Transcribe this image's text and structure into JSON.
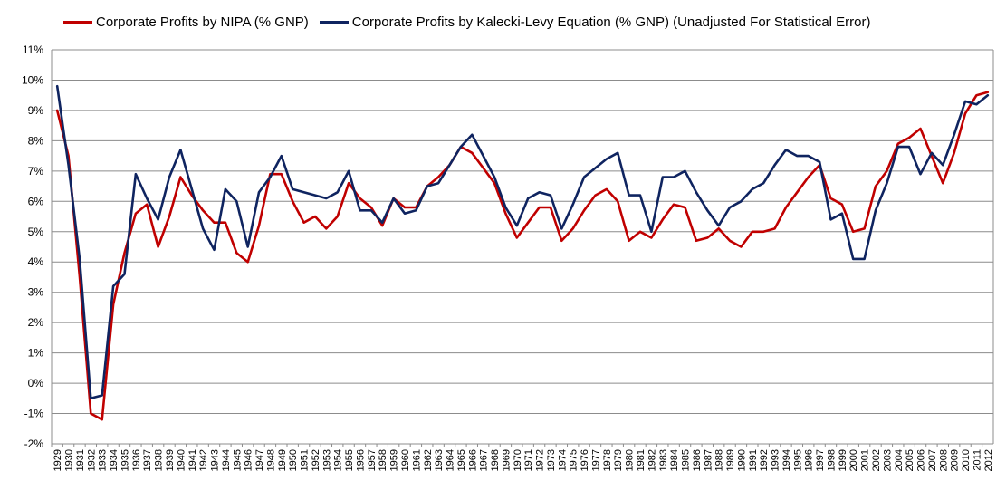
{
  "chart_data": {
    "type": "line",
    "title": "",
    "xlabel": "",
    "ylabel": "",
    "ylim": [
      -2,
      11
    ],
    "yticks": [
      -2,
      -1,
      0,
      1,
      2,
      3,
      4,
      5,
      6,
      7,
      8,
      9,
      10,
      11
    ],
    "ytick_suffix": "%",
    "grid": "horizontal",
    "legend_position": "top-left",
    "x": [
      1929,
      1930,
      1931,
      1932,
      1933,
      1934,
      1935,
      1936,
      1937,
      1938,
      1939,
      1940,
      1941,
      1942,
      1943,
      1944,
      1945,
      1946,
      1947,
      1948,
      1949,
      1950,
      1951,
      1952,
      1953,
      1954,
      1955,
      1956,
      1957,
      1958,
      1959,
      1960,
      1961,
      1962,
      1963,
      1964,
      1965,
      1966,
      1967,
      1968,
      1969,
      1970,
      1971,
      1972,
      1973,
      1974,
      1975,
      1976,
      1977,
      1978,
      1979,
      1980,
      1981,
      1982,
      1983,
      1984,
      1985,
      1986,
      1987,
      1988,
      1989,
      1990,
      1991,
      1992,
      1993,
      1994,
      1995,
      1996,
      1997,
      1998,
      1999,
      2000,
      2001,
      2002,
      2003,
      2004,
      2005,
      2006,
      2007,
      2008,
      2009,
      2010,
      2011,
      2012
    ],
    "series": [
      {
        "name": "Corporate Profits by NIPA (% GNP)",
        "color": "#c00000",
        "values": [
          9.0,
          7.5,
          3.5,
          -1.0,
          -1.2,
          2.6,
          4.3,
          5.6,
          5.9,
          4.5,
          5.5,
          6.8,
          6.2,
          5.7,
          5.3,
          5.3,
          4.3,
          4.0,
          5.2,
          6.9,
          6.9,
          6.0,
          5.3,
          5.5,
          5.1,
          5.5,
          6.6,
          6.1,
          5.8,
          5.2,
          6.1,
          5.8,
          5.8,
          6.5,
          6.8,
          7.2,
          7.8,
          7.6,
          7.1,
          6.6,
          5.6,
          4.8,
          5.3,
          5.8,
          5.8,
          4.7,
          5.1,
          5.7,
          6.2,
          6.4,
          6.0,
          4.7,
          5.0,
          4.8,
          5.4,
          5.9,
          5.8,
          4.7,
          4.8,
          5.1,
          4.7,
          4.5,
          5.0,
          5.0,
          5.1,
          5.8,
          6.3,
          6.8,
          7.2,
          6.1,
          5.9,
          5.0,
          5.1,
          6.5,
          7.0,
          7.9,
          8.1,
          8.4,
          7.5,
          6.6,
          7.6,
          8.9,
          9.5,
          9.6
        ]
      },
      {
        "name": "Corporate Profits by Kalecki-Levy Equation (% GNP) (Unadjusted For Statistical Error)",
        "color": "#0f2460",
        "values": [
          9.8,
          7.2,
          4.1,
          -0.5,
          -0.4,
          3.2,
          3.6,
          6.9,
          6.1,
          5.4,
          6.8,
          7.7,
          6.4,
          5.1,
          4.4,
          6.4,
          6.0,
          4.5,
          6.3,
          6.8,
          7.5,
          6.4,
          6.3,
          6.2,
          6.1,
          6.3,
          7.0,
          5.7,
          5.7,
          5.3,
          6.1,
          5.6,
          5.7,
          6.5,
          6.6,
          7.2,
          7.8,
          8.2,
          7.5,
          6.8,
          5.8,
          5.2,
          6.1,
          6.3,
          6.2,
          5.1,
          5.9,
          6.8,
          7.1,
          7.4,
          7.6,
          6.2,
          6.2,
          5.0,
          6.8,
          6.8,
          7.0,
          6.3,
          5.7,
          5.2,
          5.8,
          6.0,
          6.4,
          6.6,
          7.2,
          7.7,
          7.5,
          7.5,
          7.3,
          5.4,
          5.6,
          4.1,
          4.1,
          5.7,
          6.6,
          7.8,
          7.8,
          6.9,
          7.6,
          7.2,
          8.2,
          9.3,
          9.2,
          9.5
        ]
      }
    ]
  }
}
